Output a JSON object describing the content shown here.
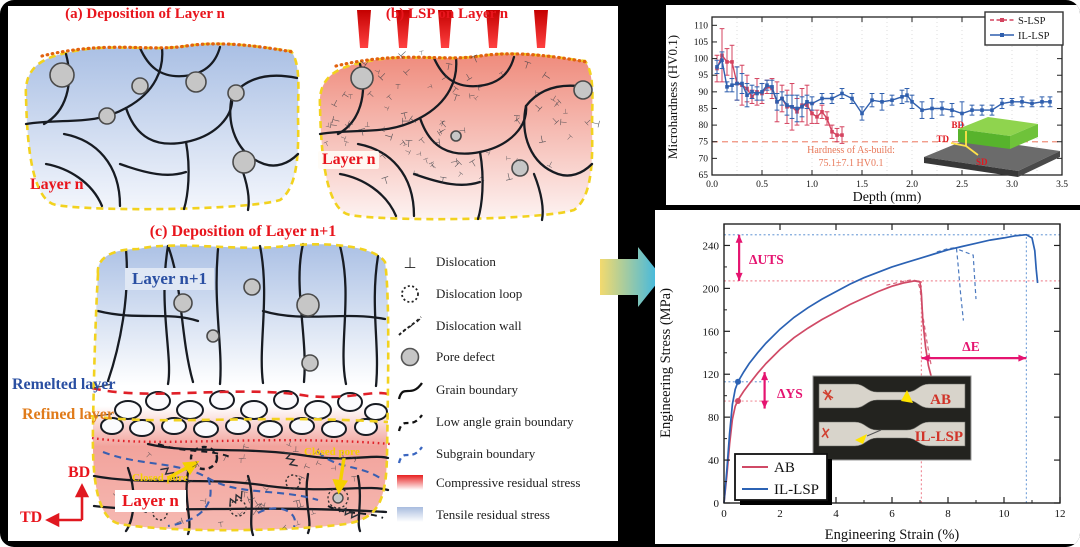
{
  "figure": {
    "panel_a": {
      "title": "(a) Deposition of Layer n",
      "layer_label": "Layer n"
    },
    "panel_b": {
      "title": "(b) LSP on Layer n",
      "layer_label": "Layer n"
    },
    "panel_c": {
      "title": "(c) Deposition of Layer n+1",
      "layer_top_label": "Layer n+1",
      "remelted_label": "Remelted layer",
      "refined_label": "Refined layer",
      "closed_pore_label": "Closed pore",
      "closed_pore_label_2": "Closed pore",
      "layer_bottom_label": "Layer n",
      "bd_label": "BD",
      "td_label": "TD"
    },
    "legend_items": [
      {
        "icon": "dislocation-icon",
        "label": "Dislocation"
      },
      {
        "icon": "dislocation-loop-icon",
        "label": "Dislocation loop"
      },
      {
        "icon": "dislocation-wall-icon",
        "label": "Dislocation wall"
      },
      {
        "icon": "pore-defect-icon",
        "label": "Pore defect"
      },
      {
        "icon": "grain-boundary-icon",
        "label": "Grain boundary"
      },
      {
        "icon": "low-angle-grain-boundary-icon",
        "label": "Low angle grain boundary"
      },
      {
        "icon": "subgrain-boundary-icon",
        "label": "Subgrain boundary"
      },
      {
        "icon": "compressive-residual-stress-icon",
        "label": "Compressive residual stress"
      },
      {
        "icon": "tensile-residual-stress-icon",
        "label": "Tensile residual stress"
      }
    ]
  },
  "chart_data": [
    {
      "type": "line",
      "xlabel": "Depth (mm)",
      "ylabel": "Microhardness (HV0.1)",
      "xlim": [
        0,
        3.5
      ],
      "ylim": [
        65,
        112.5
      ],
      "xticks": [
        0.0,
        0.5,
        1.0,
        1.5,
        2.0,
        2.5,
        3.0,
        3.5
      ],
      "yticks": [
        65,
        70,
        75,
        80,
        85,
        90,
        95,
        100,
        105,
        110
      ],
      "grid": "vertical-dotted",
      "legend_position": "top-right",
      "ref_line": {
        "value": 75,
        "color": "#f0907c",
        "style": "dashed"
      },
      "annotation": {
        "line1": "Hardness of As-build:",
        "line2": "75.1±7.1 HV0.1"
      },
      "inset_labels": {
        "bd": "BD",
        "td": "TD",
        "sd": "SD"
      },
      "series": [
        {
          "name": "S-LSP",
          "color": "#d4435f",
          "points": [
            [
              0.05,
              97,
              4
            ],
            [
              0.1,
              101,
              8
            ],
            [
              0.15,
              99,
              4
            ],
            [
              0.2,
              99,
              5
            ],
            [
              0.25,
              92.5,
              5
            ],
            [
              0.3,
              92,
              6
            ],
            [
              0.35,
              91,
              4
            ],
            [
              0.4,
              88.5,
              2
            ],
            [
              0.45,
              90,
              4
            ],
            [
              0.5,
              89.5,
              3
            ],
            [
              0.55,
              91.5,
              2
            ],
            [
              0.6,
              91,
              3
            ],
            [
              0.65,
              87,
              6
            ],
            [
              0.7,
              88,
              4
            ],
            [
              0.75,
              85.5,
              5
            ],
            [
              0.8,
              85.5,
              7
            ],
            [
              0.85,
              84,
              4
            ],
            [
              0.9,
              86,
              5
            ],
            [
              0.95,
              86,
              6
            ],
            [
              1.0,
              83.5,
              3
            ],
            [
              1.05,
              82.5,
              2
            ],
            [
              1.1,
              84,
              2
            ],
            [
              1.15,
              82,
              2
            ],
            [
              1.2,
              78,
              2
            ],
            [
              1.25,
              77,
              2
            ],
            [
              1.3,
              77,
              2.5
            ]
          ]
        },
        {
          "name": "IL-LSP",
          "color": "#2f5fae",
          "points": [
            [
              0.05,
              97.5,
              2
            ],
            [
              0.1,
              99.5,
              2.5
            ],
            [
              0.15,
              91.5,
              1.5
            ],
            [
              0.2,
              92,
              2
            ],
            [
              0.25,
              92.5,
              5
            ],
            [
              0.3,
              92.5,
              3
            ],
            [
              0.35,
              89,
              3.5
            ],
            [
              0.4,
              90,
              2
            ],
            [
              0.45,
              89.5,
              2
            ],
            [
              0.5,
              90,
              2.5
            ],
            [
              0.55,
              92,
              1.5
            ],
            [
              0.6,
              91.5,
              2
            ],
            [
              0.65,
              87,
              2.5
            ],
            [
              0.7,
              88,
              2
            ],
            [
              0.75,
              86,
              3
            ],
            [
              0.8,
              85.5,
              3.5
            ],
            [
              0.85,
              85,
              4
            ],
            [
              0.9,
              85.5,
              3
            ],
            [
              0.95,
              87,
              2
            ],
            [
              1.0,
              86.5,
              2
            ],
            [
              1.1,
              88,
              1.5
            ],
            [
              1.2,
              88,
              1.5
            ],
            [
              1.3,
              89.5,
              1.5
            ],
            [
              1.4,
              88,
              1.5
            ],
            [
              1.5,
              83.5,
              2
            ],
            [
              1.6,
              87.5,
              2
            ],
            [
              1.7,
              87,
              2.5
            ],
            [
              1.8,
              87.5,
              1.5
            ],
            [
              1.9,
              88.5,
              2
            ],
            [
              1.95,
              89,
              2
            ],
            [
              2.0,
              87,
              2
            ],
            [
              2.1,
              84.5,
              2.5
            ],
            [
              2.2,
              85,
              3
            ],
            [
              2.3,
              85,
              2
            ],
            [
              2.4,
              84.5,
              2
            ],
            [
              2.5,
              83.5,
              3.5
            ],
            [
              2.6,
              84.5,
              1.5
            ],
            [
              2.7,
              84.5,
              1.5
            ],
            [
              2.8,
              84.5,
              1.5
            ],
            [
              2.9,
              86.5,
              1.5
            ],
            [
              3.0,
              87,
              1
            ],
            [
              3.1,
              87,
              1.5
            ],
            [
              3.2,
              86.5,
              1
            ],
            [
              3.3,
              87,
              1.5
            ],
            [
              3.38,
              87,
              1.5
            ]
          ]
        }
      ]
    },
    {
      "type": "line",
      "xlabel": "Engineering Strain (%)",
      "ylabel": "Engineering Stress (MPa)",
      "xlim": [
        0,
        12
      ],
      "ylim": [
        0,
        260
      ],
      "xticks": [
        0,
        2,
        4,
        6,
        8,
        10,
        12
      ],
      "yticks": [
        0,
        40,
        80,
        120,
        160,
        200,
        240
      ],
      "legend_position": "bottom-left",
      "annotations": {
        "uts": "ΔUTS",
        "ys": "ΔYS",
        "e": "ΔE"
      },
      "ref_values": {
        "ab_uts": 207,
        "il_uts": 250,
        "ab_ys": 95,
        "il_ys": 113,
        "ab_strain": 7.05,
        "il_strain": 10.8
      },
      "inset": {
        "top_label": "AB",
        "bottom_label": "IL-LSP"
      },
      "series": [
        {
          "name": "AB",
          "color": "#d04a66",
          "points": [
            [
              0,
              0
            ],
            [
              0.1,
              25
            ],
            [
              0.2,
              55
            ],
            [
              0.3,
              78
            ],
            [
              0.4,
              90
            ],
            [
              0.5,
              96
            ],
            [
              0.7,
              104
            ],
            [
              0.9,
              111
            ],
            [
              1.2,
              121
            ],
            [
              1.5,
              130
            ],
            [
              2.0,
              143
            ],
            [
              2.5,
              154
            ],
            [
              3.0,
              163
            ],
            [
              3.5,
              171
            ],
            [
              4.0,
              178
            ],
            [
              4.5,
              185
            ],
            [
              5.0,
              191
            ],
            [
              5.5,
              197
            ],
            [
              6.0,
              202
            ],
            [
              6.4,
              205
            ],
            [
              6.8,
              207
            ],
            [
              7.0,
              206
            ],
            [
              7.05,
              195
            ],
            [
              7.1,
              170
            ],
            [
              7.2,
              145
            ],
            [
              7.3,
              128
            ],
            [
              7.4,
              118
            ]
          ]
        },
        {
          "name": "IL-LSP",
          "color": "#2b62b4",
          "points": [
            [
              0,
              0
            ],
            [
              0.1,
              30
            ],
            [
              0.2,
              65
            ],
            [
              0.3,
              92
            ],
            [
              0.4,
              106
            ],
            [
              0.5,
              113
            ],
            [
              0.7,
              122
            ],
            [
              0.9,
              130
            ],
            [
              1.2,
              140
            ],
            [
              1.5,
              149
            ],
            [
              2.0,
              162
            ],
            [
              2.5,
              173
            ],
            [
              3.0,
              182
            ],
            [
              3.5,
              190
            ],
            [
              4.0,
              197
            ],
            [
              4.5,
              204
            ],
            [
              5.0,
              210
            ],
            [
              5.5,
              215
            ],
            [
              6.0,
              220
            ],
            [
              6.5,
              224
            ],
            [
              7.0,
              228
            ],
            [
              7.5,
              232
            ],
            [
              8.0,
              236
            ],
            [
              8.5,
              239
            ],
            [
              9.0,
              242
            ],
            [
              9.5,
              245
            ],
            [
              10.0,
              247
            ],
            [
              10.4,
              249
            ],
            [
              10.8,
              250
            ],
            [
              11.0,
              247
            ],
            [
              11.1,
              235
            ],
            [
              11.15,
              218
            ],
            [
              11.2,
              205
            ]
          ]
        },
        {
          "name": "AB-repeat",
          "color": "#d04a66",
          "dashed": true,
          "points": [
            [
              5.8,
              203
            ],
            [
              6.3,
              206
            ],
            [
              6.7,
              208
            ],
            [
              6.9,
              207
            ],
            [
              7.0,
              200
            ],
            [
              7.1,
              175
            ],
            [
              7.25,
              150
            ],
            [
              7.4,
              128
            ]
          ]
        },
        {
          "name": "IL-LSP-repeat",
          "color": "#2b62b4",
          "dashed": true,
          "points": [
            [
              7.6,
              234
            ],
            [
              8.0,
              237
            ],
            [
              8.3,
              238
            ],
            [
              8.35,
              225
            ],
            [
              8.45,
              195
            ],
            [
              8.55,
              170
            ]
          ]
        },
        {
          "name": "IL-LSP-repeat-2",
          "color": "#2b62b4",
          "dashed": true,
          "points": [
            [
              8.4,
              236
            ],
            [
              8.7,
              233
            ],
            [
              8.9,
              231
            ],
            [
              8.95,
              210
            ],
            [
              9.0,
              190
            ]
          ]
        }
      ]
    }
  ]
}
